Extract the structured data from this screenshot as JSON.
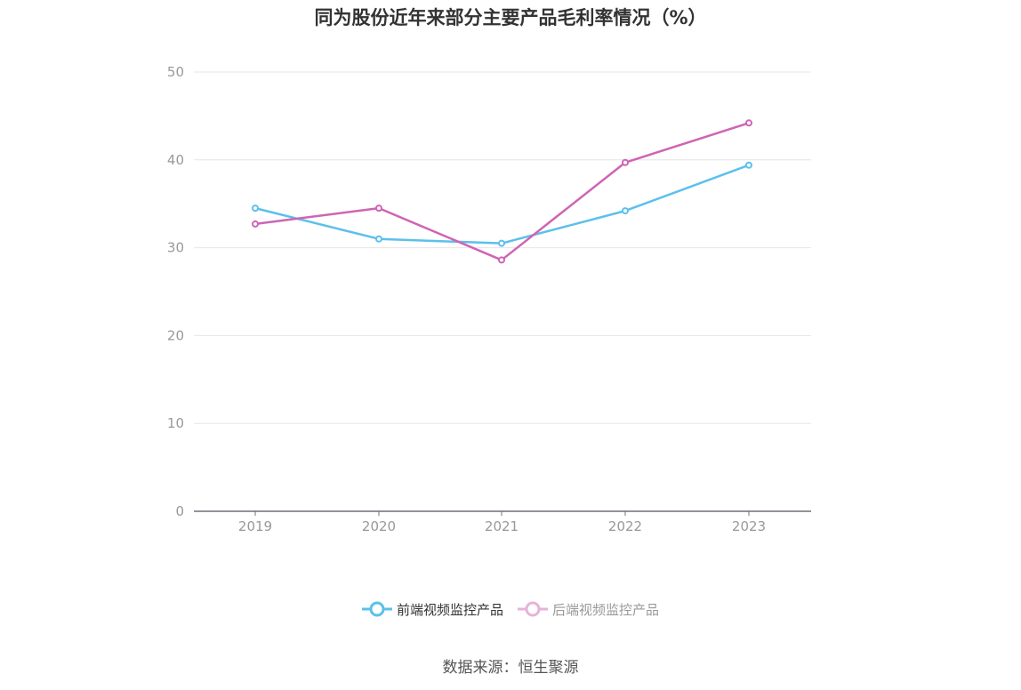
{
  "chart_data": {
    "type": "line",
    "title": "同为股份近年来部分主要产品毛利率情况（%）",
    "categories": [
      "2019",
      "2020",
      "2021",
      "2022",
      "2023"
    ],
    "series": [
      {
        "name": "前端视频监控产品",
        "values": [
          34.5,
          31.0,
          30.5,
          34.2,
          39.4
        ],
        "color": "#5bc0eb"
      },
      {
        "name": "后端视频监控产品",
        "values": [
          32.7,
          34.5,
          28.6,
          39.7,
          44.2
        ],
        "color": "#cf64b4"
      }
    ],
    "ylim": [
      0,
      50
    ],
    "yticks": [
      "0",
      "10",
      "20",
      "30",
      "40",
      "50"
    ],
    "grid": true,
    "legend_position": "bottom",
    "legend_colors": [
      "#5bc0eb",
      "#e6b3d8"
    ],
    "source": "数据来源：恒生聚源"
  }
}
